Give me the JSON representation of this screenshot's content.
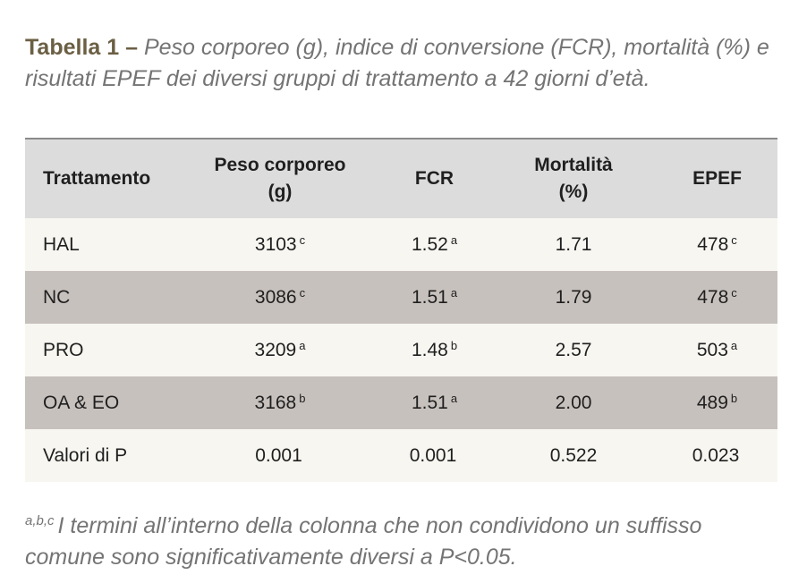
{
  "caption": {
    "lead": "Tabella 1 –",
    "text": "Peso corporeo (g), indice di conversione (FCR), mortalità (%) e risultati EPEF dei diversi gruppi di trattamento a 42 giorni d’età."
  },
  "table": {
    "headers": [
      "Trattamento",
      "Peso corporeo (g)",
      "FCR",
      "Mortalità (%)",
      "EPEF"
    ],
    "rows": [
      {
        "name": "HAL",
        "peso": "3103",
        "peso_sup": "c",
        "fcr": "1.52",
        "fcr_sup": "a",
        "mortalita": "1.71",
        "epef": "478",
        "epef_sup": "c"
      },
      {
        "name": "NC",
        "peso": "3086",
        "peso_sup": "c",
        "fcr": "1.51",
        "fcr_sup": "a",
        "mortalita": "1.79",
        "epef": "478",
        "epef_sup": "c"
      },
      {
        "name": "PRO",
        "peso": "3209",
        "peso_sup": "a",
        "fcr": "1.48",
        "fcr_sup": "b",
        "mortalita": "2.57",
        "epef": "503",
        "epef_sup": "a"
      },
      {
        "name": "OA & EO",
        "peso": "3168",
        "peso_sup": "b",
        "fcr": "1.51",
        "fcr_sup": "a",
        "mortalita": "2.00",
        "epef": "489",
        "epef_sup": "b"
      },
      {
        "name": "Valori di P",
        "peso": "0.001",
        "peso_sup": "",
        "fcr": "0.001",
        "fcr_sup": "",
        "mortalita": "0.522",
        "epef": "0.023",
        "epef_sup": ""
      }
    ]
  },
  "footnote": {
    "marker": "a,b,c",
    "text": "I termini all’interno della colonna che non condividono un suffisso comune sono significativamente diversi a P<0.05."
  },
  "colors": {
    "caption_lead": "#6b5f44",
    "caption_text": "#747474",
    "header_bg": "#dcdcdc",
    "row_light": "#f7f6f1",
    "row_dark": "#c7c1bd"
  }
}
